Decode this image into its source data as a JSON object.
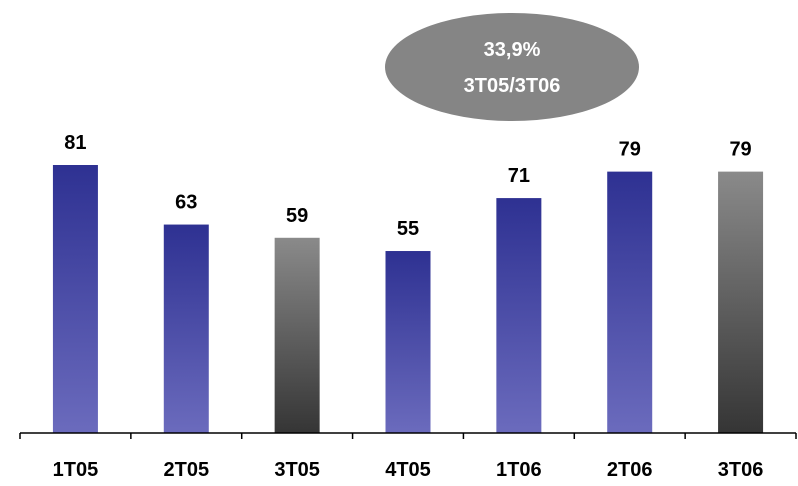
{
  "chart_data": {
    "type": "bar",
    "categories": [
      "1T05",
      "2T05",
      "3T05",
      "4T05",
      "1T06",
      "2T06",
      "3T06"
    ],
    "values": [
      81,
      63,
      59,
      55,
      71,
      79,
      79
    ],
    "data_labels": [
      "81",
      "63",
      "59",
      "55",
      "71",
      "79",
      "79"
    ],
    "highlight_categories": [
      "3T05",
      "3T06"
    ],
    "title": "",
    "xlabel": "",
    "ylabel": "",
    "ylim": [
      0,
      100
    ],
    "grid": false,
    "annotation": {
      "line1": "33,9%",
      "line2": "3T05/3T06"
    },
    "colors": {
      "bar_top": "#2e3192",
      "bar_bottom": "#6b6bbd",
      "highlight_top": "#8a8a8a",
      "highlight_bottom": "#353535",
      "bubble": "#858585",
      "bubble_text": "#ffffff",
      "axis": "#000000"
    }
  }
}
